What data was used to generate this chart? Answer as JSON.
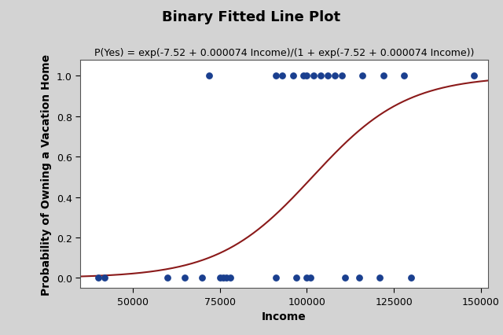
{
  "title": "Binary Fitted Line Plot",
  "subtitle": "P(Yes) = exp(-7.52 + 0.000074 Income)/(1 + exp(-7.52 + 0.000074 Income))",
  "xlabel": "Income",
  "ylabel": "Probability of Owning a Vacation Home",
  "xlim": [
    35000,
    152000
  ],
  "ylim": [
    -0.05,
    1.08
  ],
  "logistic_a": -7.52,
  "logistic_b": 7.4e-05,
  "background_color": "#d3d3d3",
  "plot_bg_color": "#ffffff",
  "dot_color": "#1a3f8f",
  "line_color": "#8b1a1a",
  "dot_size": 28,
  "points_y0": [
    40000,
    42000,
    60000,
    65000,
    70000,
    75000,
    76000,
    77000,
    78000,
    91000,
    97000,
    100000,
    101000,
    111000,
    115000,
    121000,
    130000
  ],
  "points_y1": [
    72000,
    91000,
    93000,
    96000,
    99000,
    100000,
    102000,
    104000,
    106000,
    108000,
    110000,
    116000,
    122000,
    128000,
    148000
  ],
  "xticks": [
    50000,
    75000,
    100000,
    125000,
    150000
  ],
  "yticks": [
    0.0,
    0.2,
    0.4,
    0.6,
    0.8,
    1.0
  ],
  "title_fontsize": 13,
  "subtitle_fontsize": 9,
  "label_fontsize": 10,
  "tick_fontsize": 9
}
